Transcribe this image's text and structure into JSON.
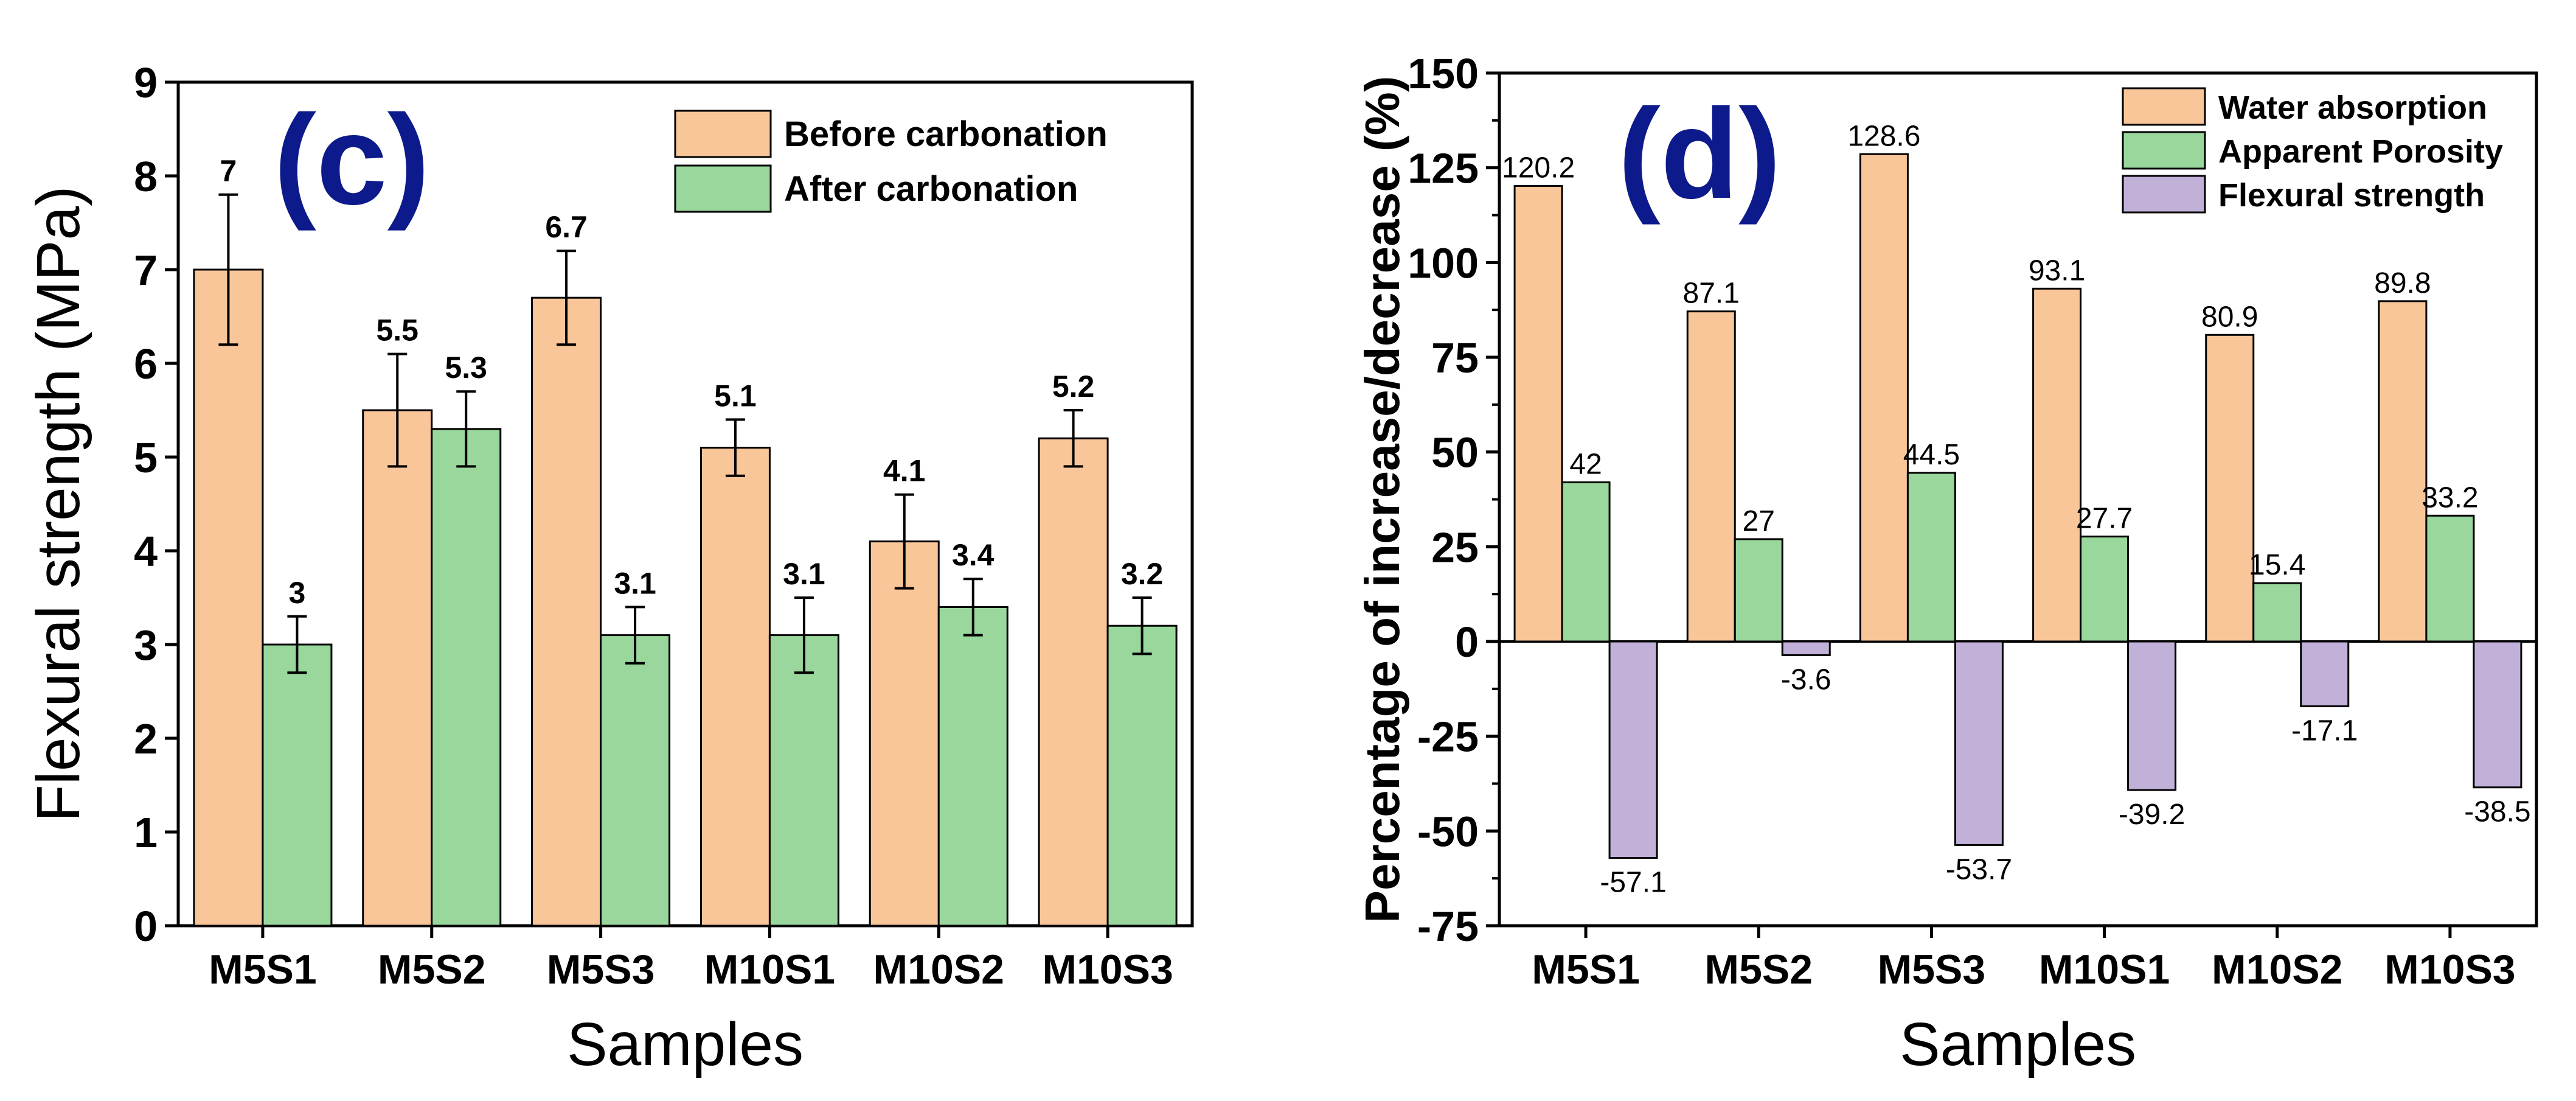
{
  "chart_data": [
    {
      "type": "bar",
      "panel_label": "(c)",
      "categories": [
        "M5S1",
        "M5S2",
        "M5S3",
        "M10S1",
        "M10S2",
        "M10S3"
      ],
      "series": [
        {
          "name": "Before carbonation",
          "color": "#f9c69a",
          "values": [
            7,
            5.5,
            6.7,
            5.1,
            4.1,
            5.2
          ],
          "errors": [
            0.8,
            0.6,
            0.5,
            0.3,
            0.5,
            0.3
          ],
          "labels": [
            "7",
            "5.5",
            "6.7",
            "5.1",
            "4.1",
            "5.2"
          ]
        },
        {
          "name": "After carbonation",
          "color": "#99d79c",
          "values": [
            3,
            5.3,
            3.1,
            3.1,
            3.4,
            3.2
          ],
          "errors": [
            0.3,
            0.4,
            0.3,
            0.4,
            0.3,
            0.3
          ],
          "labels": [
            "3",
            "5.3",
            "3.1",
            "3.1",
            "3.4",
            "3.2"
          ]
        }
      ],
      "xlabel": "Samples",
      "ylabel": "Flexural strength (MPa)",
      "ylim": [
        0,
        9
      ],
      "yticks": [
        "0",
        "1",
        "2",
        "3",
        "4",
        "5",
        "6",
        "7",
        "8",
        "9"
      ],
      "grid": false,
      "legend_position": "top-right"
    },
    {
      "type": "bar",
      "panel_label": "(d)",
      "categories": [
        "M5S1",
        "M5S2",
        "M5S3",
        "M10S1",
        "M10S2",
        "M10S3"
      ],
      "series": [
        {
          "name": "Water absorption",
          "color": "#f9c69a",
          "values": [
            120.2,
            87.1,
            128.6,
            93.1,
            80.9,
            89.8
          ],
          "labels": [
            "120.2",
            "87.1",
            "128.6",
            "93.1",
            "80.9",
            "89.8"
          ]
        },
        {
          "name": "Apparent Porosity",
          "color": "#99d79c",
          "values": [
            42,
            27,
            44.5,
            27.7,
            15.4,
            33.2
          ],
          "labels": [
            "42",
            "27",
            "44.5",
            "27.7",
            "15.4",
            "33.2"
          ]
        },
        {
          "name": "Flexural strength",
          "color": "#c1b1d9",
          "values": [
            -57.1,
            -3.6,
            -53.7,
            -39.2,
            -17.1,
            -38.5
          ],
          "labels": [
            "-57.1",
            "-3.6",
            "-53.7",
            "-39.2",
            "-17.1",
            "-38.5"
          ]
        }
      ],
      "xlabel": "Samples",
      "ylabel": "Percentage of increase/decrease (%)",
      "ylim": [
        -75,
        150
      ],
      "yticks": [
        "-75",
        "-50",
        "-25",
        "0",
        "25",
        "50",
        "75",
        "100",
        "125",
        "150"
      ],
      "grid": false,
      "legend_position": "top-right"
    }
  ]
}
